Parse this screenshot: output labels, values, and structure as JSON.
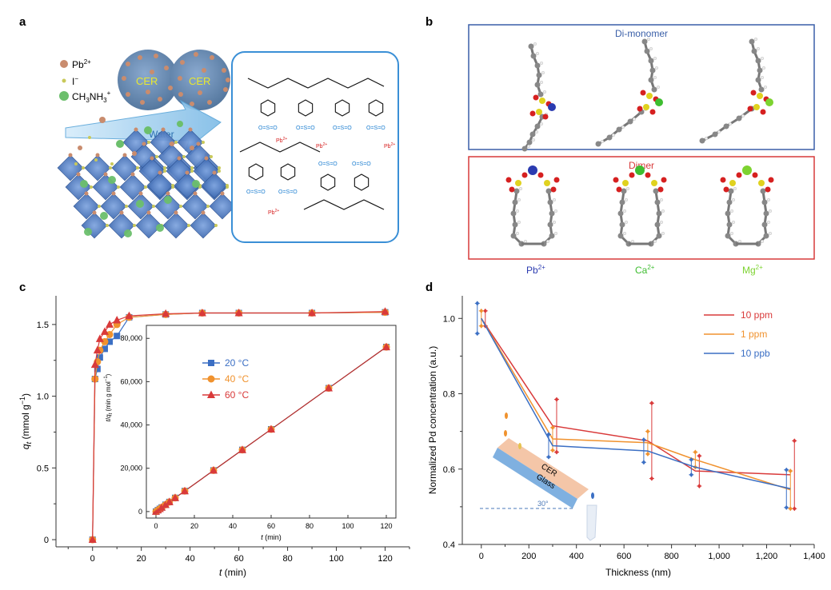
{
  "panels": {
    "a": "a",
    "b": "b",
    "c": "c",
    "d": "d"
  },
  "panel_a": {
    "legend": [
      {
        "label": "Pb",
        "sup": "2+",
        "color": "#c98c6e"
      },
      {
        "label": "I",
        "sup": "−",
        "color": "#c9c95a"
      },
      {
        "label": "CH",
        "sub": "3",
        "label2": "NH",
        "sub2": "3",
        "sup": "+",
        "color": "#6cbf6c"
      }
    ],
    "cer_label_1": "CER",
    "cer_label_2": "CER",
    "water_label": "Water",
    "pb_label": "Pb",
    "pb_sup": "2+",
    "colors": {
      "cer": "#6d8fb8",
      "cer_text": "#e8e830",
      "water": "#a8d4f0",
      "octa": "#3c6db3",
      "box": "#3a8fd6"
    }
  },
  "panel_b": {
    "top_title": "Di-monomer",
    "bottom_title": "Dimer",
    "ions": [
      {
        "label": "Pb",
        "sup": "2+",
        "color": "#2b3bb0"
      },
      {
        "label": "Ca",
        "sup": "2+",
        "color": "#3ebd30"
      },
      {
        "label": "Mg",
        "sup": "2+",
        "color": "#7dd330"
      }
    ],
    "colors": {
      "top_box": "#3a5fa8",
      "bottom_box": "#d73a3a"
    }
  },
  "chart_data": [
    {
      "type": "line",
      "panel": "c",
      "xlabel": "t (min)",
      "ylabel": "q_t (mmol g^-1)",
      "xlim": [
        -15,
        130
      ],
      "ylim": [
        -0.05,
        1.7
      ],
      "xticks": [
        "0",
        "20",
        "40",
        "60",
        "80",
        "100",
        "120"
      ],
      "yticks": [
        "0",
        "0.5",
        "1.0",
        "1.5"
      ],
      "series": [
        {
          "name": "20 °C",
          "color": "#3b6fc4",
          "marker": "square",
          "x": [
            0,
            1,
            2,
            3,
            5,
            7,
            10,
            15,
            30,
            45,
            60,
            90,
            120
          ],
          "y": [
            0,
            1.12,
            1.19,
            1.27,
            1.33,
            1.38,
            1.42,
            1.55,
            1.57,
            1.58,
            1.58,
            1.58,
            1.585
          ]
        },
        {
          "name": "40 °C",
          "color": "#f0922e",
          "marker": "circle",
          "x": [
            0,
            1,
            2,
            3,
            5,
            7,
            10,
            15,
            30,
            45,
            60,
            90,
            120
          ],
          "y": [
            0,
            1.12,
            1.24,
            1.32,
            1.38,
            1.43,
            1.5,
            1.55,
            1.57,
            1.58,
            1.58,
            1.58,
            1.585
          ]
        },
        {
          "name": "60 °C",
          "color": "#d93a3a",
          "marker": "triangle",
          "x": [
            0,
            1,
            2,
            3,
            5,
            7,
            10,
            15,
            30,
            45,
            60,
            90,
            120
          ],
          "y": [
            0,
            1.22,
            1.32,
            1.4,
            1.45,
            1.5,
            1.53,
            1.56,
            1.575,
            1.58,
            1.58,
            1.58,
            1.59
          ]
        }
      ],
      "inset": {
        "xlabel": "t (min)",
        "ylabel": "t/q_t (min g mol^-1)",
        "xlim": [
          -5,
          125
        ],
        "ylim": [
          -3000,
          86000
        ],
        "xticks": [
          "0",
          "20",
          "40",
          "60",
          "80",
          "100",
          "120"
        ],
        "yticks": [
          "0",
          "20,000",
          "40,000",
          "60,000",
          "80,000"
        ],
        "x": [
          0,
          1,
          2,
          3,
          5,
          7,
          10,
          15,
          30,
          45,
          60,
          90,
          120
        ],
        "y": [
          0,
          630,
          1260,
          1900,
          3160,
          4430,
          6320,
          9480,
          19000,
          28500,
          38000,
          57000,
          76000
        ]
      }
    },
    {
      "type": "line",
      "panel": "d",
      "xlabel": "Thickness (nm)",
      "ylabel": "Normalized Pd concentration (a.u.)",
      "xlim": [
        -80,
        1400
      ],
      "ylim": [
        0.4,
        1.06
      ],
      "xticks": [
        "0",
        "200",
        "400",
        "600",
        "800",
        "1,000",
        "1,200",
        "1,400"
      ],
      "yticks": [
        "0.4",
        "0.6",
        "0.8",
        "1.0"
      ],
      "series": [
        {
          "name": "10 ppm",
          "color": "#d93a3a",
          "x": [
            0,
            300,
            700,
            900,
            1300
          ],
          "y": [
            1.0,
            0.715,
            0.675,
            0.595,
            0.585
          ],
          "err": [
            0.02,
            0.07,
            0.1,
            0.04,
            0.09
          ]
        },
        {
          "name": "  1 ppm",
          "color": "#f0922e",
          "x": [
            0,
            300,
            700,
            900,
            1300
          ],
          "y": [
            1.0,
            0.68,
            0.67,
            0.625,
            0.545
          ],
          "err": [
            0.02,
            0.03,
            0.03,
            0.02,
            0.05
          ]
        },
        {
          "name": "10 ppb",
          "color": "#3b6fc4",
          "x": [
            0,
            300,
            700,
            900,
            1300
          ],
          "y": [
            1.0,
            0.662,
            0.648,
            0.605,
            0.548
          ],
          "err": [
            0.04,
            0.03,
            0.03,
            0.02,
            0.05
          ]
        }
      ],
      "inset_labels": {
        "cer": "CER",
        "glass": "Glass",
        "angle": "30°"
      }
    }
  ]
}
